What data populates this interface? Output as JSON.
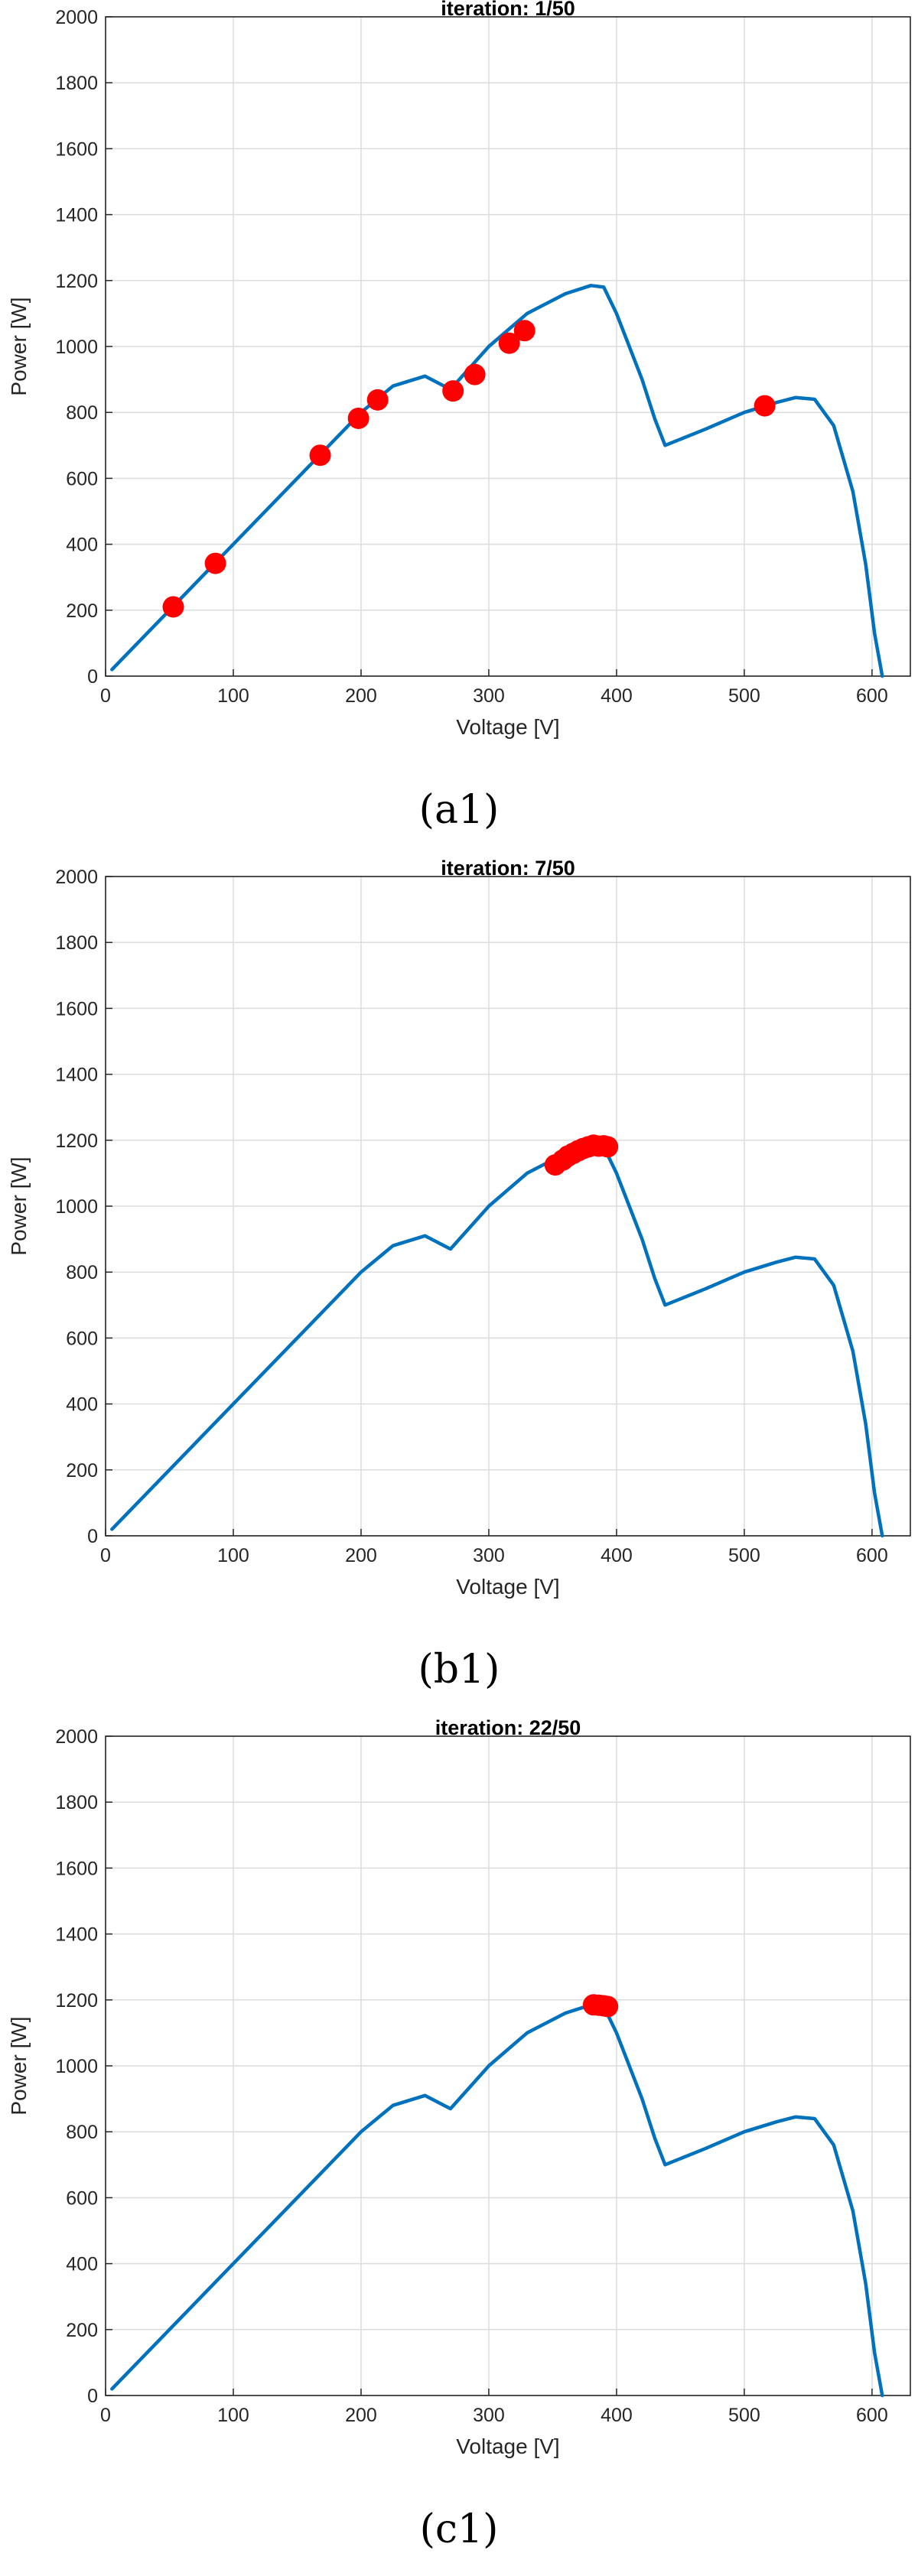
{
  "chart_data": [
    {
      "type": "line",
      "title": "iteration: 1/50",
      "xlabel": "Voltage [V]",
      "ylabel": "Power [W]",
      "caption": "(a1)",
      "xlim": [
        0,
        630
      ],
      "ylim": [
        0,
        2000
      ],
      "xticks": [
        0,
        100,
        200,
        300,
        400,
        500,
        600
      ],
      "yticks": [
        0,
        200,
        400,
        600,
        800,
        1000,
        1200,
        1400,
        1600,
        1800,
        2000
      ],
      "grid": true,
      "curve": {
        "color": "#0072BD",
        "x": [
          5,
          50,
          100,
          150,
          200,
          225,
          250,
          265,
          270,
          300,
          330,
          360,
          380,
          390,
          400,
          410,
          420,
          430,
          438,
          470,
          500,
          525,
          540,
          555,
          570,
          585,
          595,
          602,
          608
        ],
        "y": [
          20,
          200,
          400,
          600,
          800,
          880,
          910,
          880,
          870,
          1000,
          1100,
          1160,
          1185,
          1180,
          1100,
          1000,
          900,
          780,
          700,
          750,
          800,
          830,
          845,
          840,
          760,
          560,
          340,
          130,
          0
        ]
      },
      "points": {
        "color": "#FF0000",
        "x": [
          53,
          86,
          168,
          198,
          213,
          272,
          289,
          316,
          328,
          516
        ],
        "y": [
          210,
          342,
          670,
          782,
          838,
          865,
          915,
          1010,
          1048,
          820
        ]
      }
    },
    {
      "type": "line",
      "title": "iteration: 7/50",
      "xlabel": "Voltage [V]",
      "ylabel": "Power [W]",
      "caption": "(b1)",
      "xlim": [
        0,
        630
      ],
      "ylim": [
        0,
        2000
      ],
      "xticks": [
        0,
        100,
        200,
        300,
        400,
        500,
        600
      ],
      "yticks": [
        0,
        200,
        400,
        600,
        800,
        1000,
        1200,
        1400,
        1600,
        1800,
        2000
      ],
      "grid": true,
      "curve": {
        "color": "#0072BD",
        "x": [
          5,
          50,
          100,
          150,
          200,
          225,
          250,
          265,
          270,
          300,
          330,
          360,
          380,
          390,
          400,
          410,
          420,
          430,
          438,
          470,
          500,
          525,
          540,
          555,
          570,
          585,
          595,
          602,
          608
        ],
        "y": [
          20,
          200,
          400,
          600,
          800,
          880,
          910,
          880,
          870,
          1000,
          1100,
          1160,
          1185,
          1180,
          1100,
          1000,
          900,
          780,
          700,
          750,
          800,
          830,
          845,
          840,
          760,
          560,
          340,
          130,
          0
        ]
      },
      "points": {
        "color": "#FF0000",
        "x": [
          352,
          358,
          362,
          366,
          370,
          374,
          378,
          382,
          386,
          390,
          393
        ],
        "y": [
          1125,
          1140,
          1152,
          1160,
          1168,
          1175,
          1180,
          1185,
          1182,
          1183,
          1180
        ]
      }
    },
    {
      "type": "line",
      "title": "iteration: 22/50",
      "xlabel": "Voltage [V]",
      "ylabel": "Power [W]",
      "caption": "(c1)",
      "xlim": [
        0,
        630
      ],
      "ylim": [
        0,
        2000
      ],
      "xticks": [
        0,
        100,
        200,
        300,
        400,
        500,
        600
      ],
      "yticks": [
        0,
        200,
        400,
        600,
        800,
        1000,
        1200,
        1400,
        1600,
        1800,
        2000
      ],
      "grid": true,
      "curve": {
        "color": "#0072BD",
        "x": [
          5,
          50,
          100,
          150,
          200,
          225,
          250,
          265,
          270,
          300,
          330,
          360,
          380,
          390,
          400,
          410,
          420,
          430,
          438,
          470,
          500,
          525,
          540,
          555,
          570,
          585,
          595,
          602,
          608
        ],
        "y": [
          20,
          200,
          400,
          600,
          800,
          880,
          910,
          880,
          870,
          1000,
          1100,
          1160,
          1185,
          1180,
          1100,
          1000,
          900,
          780,
          700,
          750,
          800,
          830,
          845,
          840,
          760,
          560,
          340,
          130,
          0
        ]
      },
      "points": {
        "color": "#FF0000",
        "x": [
          382,
          386,
          390,
          393
        ],
        "y": [
          1185,
          1184,
          1182,
          1180
        ]
      }
    }
  ]
}
